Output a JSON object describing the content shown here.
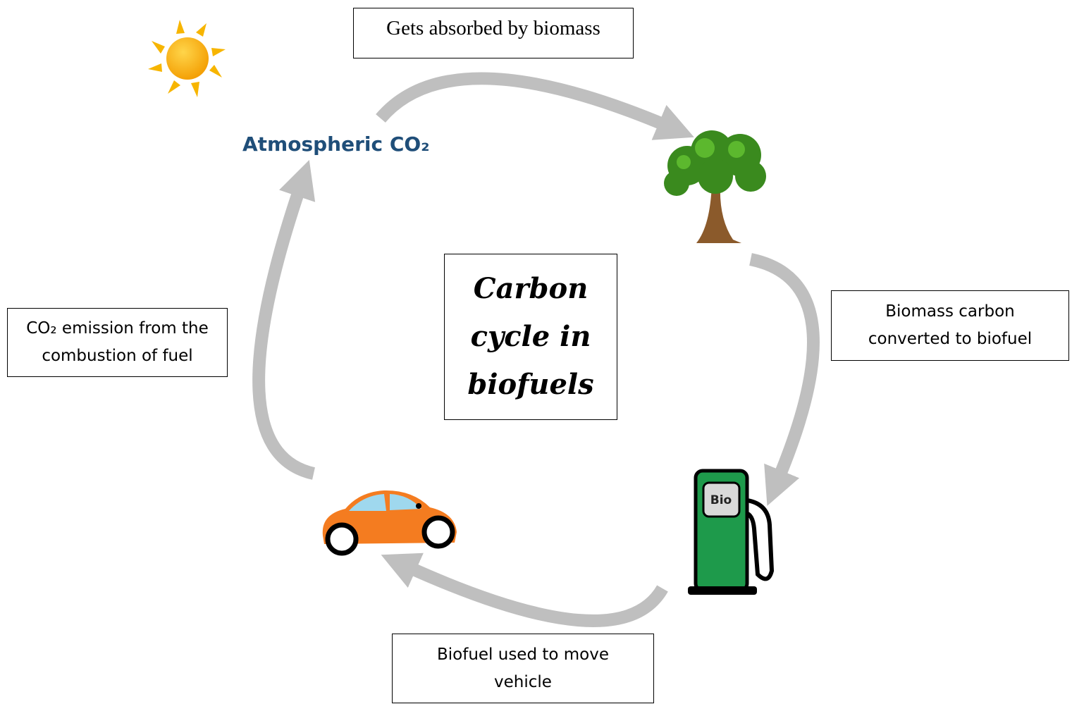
{
  "center": {
    "title": "Carbon cycle in biofuels"
  },
  "nodes": [
    {
      "label": "Atmospheric CO₂"
    },
    {
      "label": "Gets absorbed by biomass"
    },
    {
      "label": "Biomass carbon converted to biofuel"
    },
    {
      "label": "Biofuel used to move vehicle"
    },
    {
      "label": "CO₂ emission from the combustion of fuel"
    }
  ],
  "pump": {
    "label": "Bio"
  }
}
